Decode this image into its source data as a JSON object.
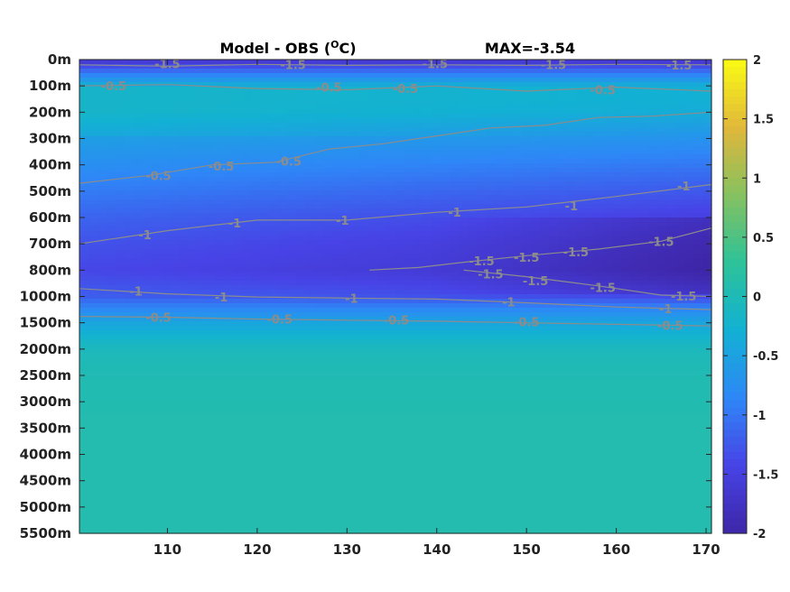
{
  "chart_data": {
    "type": "heatmap",
    "title": "Model - OBS (",
    "title_unit": "O",
    "title_suffix": "C)",
    "max_label": "MAX=-3.54",
    "x_ticks": [
      110,
      120,
      130,
      140,
      150,
      160,
      170
    ],
    "x_tick_labels": [
      "110",
      "120",
      "130",
      "140",
      "150",
      "160",
      "170"
    ],
    "xlim": [
      100.2,
      170.6
    ],
    "y_tick_labels": [
      "0m",
      "100m",
      "200m",
      "300m",
      "400m",
      "500m",
      "600m",
      "700m",
      "800m",
      "1000m",
      "1500m",
      "2000m",
      "2500m",
      "3000m",
      "3500m",
      "4000m",
      "4500m",
      "5000m",
      "5500m"
    ],
    "y_tick_depths": [
      0,
      100,
      200,
      300,
      400,
      500,
      600,
      700,
      800,
      1000,
      1500,
      2000,
      2500,
      3000,
      3500,
      4000,
      4500,
      5000,
      5500
    ],
    "colorbar": {
      "range": [
        -2,
        2
      ],
      "ticks": [
        2,
        1.5,
        1,
        0.5,
        0,
        -0.5,
        -1,
        -1.5,
        -2
      ],
      "tick_labels": [
        "2",
        "1.5",
        "1",
        "0.5",
        "0",
        "-0.5",
        "-1",
        "-1.5",
        "-2"
      ],
      "colormap": [
        "#3e26a8",
        "#4743e6",
        "#2e87f7",
        "#12b1d3",
        "#2dc299",
        "#86c15f",
        "#e1b83a",
        "#f9fb14"
      ]
    },
    "base_profile": [
      {
        "depth": 0,
        "value": -1.7
      },
      {
        "depth": 100,
        "value": -0.3
      },
      {
        "depth": 200,
        "value": -0.3
      },
      {
        "depth": 300,
        "value": -0.55
      },
      {
        "depth": 400,
        "value": -0.75
      },
      {
        "depth": 500,
        "value": -0.95
      },
      {
        "depth": 600,
        "value": -1.15
      },
      {
        "depth": 700,
        "value": -1.3
      },
      {
        "depth": 800,
        "value": -1.4
      },
      {
        "depth": 1000,
        "value": -1.2
      },
      {
        "depth": 1500,
        "value": -0.45
      },
      {
        "depth": 2000,
        "value": -0.05
      },
      {
        "depth": 2500,
        "value": 0.03
      },
      {
        "depth": 3500,
        "value": 0.08
      },
      {
        "depth": 5500,
        "value": 0.08
      }
    ],
    "contours": [
      {
        "level": "-1.5",
        "points": [
          [
            100.2,
            20
          ],
          [
            110,
            25
          ],
          [
            120,
            18
          ],
          [
            130,
            22
          ],
          [
            140,
            20
          ],
          [
            150,
            22
          ],
          [
            160,
            18
          ],
          [
            170.6,
            20
          ]
        ]
      },
      {
        "level": "-0.5",
        "points": [
          [
            100.2,
            100
          ],
          [
            110,
            95
          ],
          [
            120,
            110
          ],
          [
            130,
            115
          ],
          [
            140,
            100
          ],
          [
            150,
            120
          ],
          [
            160,
            105
          ],
          [
            170.6,
            120
          ]
        ]
      },
      {
        "level": "-0.5",
        "points": [
          [
            100.2,
            470
          ],
          [
            108,
            440
          ],
          [
            115,
            400
          ],
          [
            122,
            390
          ],
          [
            128,
            340
          ],
          [
            134,
            320
          ],
          [
            140,
            290
          ],
          [
            146,
            260
          ],
          [
            152,
            250
          ],
          [
            158,
            220
          ],
          [
            164,
            215
          ],
          [
            170.6,
            200
          ]
        ]
      },
      {
        "level": "-1",
        "points": [
          [
            100.2,
            700
          ],
          [
            110,
            650
          ],
          [
            120,
            610
          ],
          [
            130,
            610
          ],
          [
            140,
            580
          ],
          [
            150,
            560
          ],
          [
            160,
            520
          ],
          [
            170.6,
            475
          ]
        ]
      },
      {
        "level": "-1.5",
        "points": [
          [
            132.5,
            800
          ],
          [
            138,
            790
          ],
          [
            143,
            770
          ],
          [
            150,
            745
          ],
          [
            158,
            720
          ],
          [
            165,
            690
          ],
          [
            170.6,
            640
          ]
        ]
      },
      {
        "level": "-1.5",
        "points": [
          [
            143,
            800
          ],
          [
            150,
            850
          ],
          [
            158,
            920
          ],
          [
            165,
            990
          ],
          [
            170.6,
            1000
          ]
        ]
      },
      {
        "level": "-1",
        "points": [
          [
            100.2,
            940
          ],
          [
            110,
            980
          ],
          [
            120,
            1010
          ],
          [
            130,
            1030
          ],
          [
            140,
            1050
          ],
          [
            150,
            1120
          ],
          [
            160,
            1200
          ],
          [
            170.6,
            1250
          ]
        ]
      },
      {
        "level": "-0.5",
        "points": [
          [
            100.2,
            1380
          ],
          [
            110,
            1395
          ],
          [
            120,
            1430
          ],
          [
            130,
            1450
          ],
          [
            140,
            1470
          ],
          [
            150,
            1500
          ],
          [
            160,
            1530
          ],
          [
            170.6,
            1560
          ]
        ]
      }
    ],
    "contour_labels": [
      {
        "text": "-1.5",
        "x": 110,
        "y": 15
      },
      {
        "text": "-1.5",
        "x": 124,
        "y": 18
      },
      {
        "text": "-1.5",
        "x": 139.8,
        "y": 15
      },
      {
        "text": "-1.5",
        "x": 153,
        "y": 18
      },
      {
        "text": "-1.5",
        "x": 167,
        "y": 20
      },
      {
        "text": "-0.5",
        "x": 104,
        "y": 100
      },
      {
        "text": "-0.5",
        "x": 128,
        "y": 105
      },
      {
        "text": "-0.5",
        "x": 136.5,
        "y": 110
      },
      {
        "text": "-0.5",
        "x": 158.5,
        "y": 115
      },
      {
        "text": "-0.5",
        "x": 109,
        "y": 440
      },
      {
        "text": "-0.5",
        "x": 116,
        "y": 405
      },
      {
        "text": "-0.5",
        "x": 123.5,
        "y": 385
      },
      {
        "text": "-1",
        "x": 107.5,
        "y": 665
      },
      {
        "text": "-1",
        "x": 117.5,
        "y": 620
      },
      {
        "text": "-1",
        "x": 129.5,
        "y": 610
      },
      {
        "text": "-1",
        "x": 142,
        "y": 580
      },
      {
        "text": "-1",
        "x": 155,
        "y": 555
      },
      {
        "text": "-1",
        "x": 167.5,
        "y": 480
      },
      {
        "text": "-1.5",
        "x": 145,
        "y": 765
      },
      {
        "text": "-1.5",
        "x": 150,
        "y": 750
      },
      {
        "text": "-1.5",
        "x": 155.5,
        "y": 730
      },
      {
        "text": "-1.5",
        "x": 165,
        "y": 690
      },
      {
        "text": "-1.5",
        "x": 146,
        "y": 830
      },
      {
        "text": "-1.5",
        "x": 151,
        "y": 880
      },
      {
        "text": "-1.5",
        "x": 158.5,
        "y": 930
      },
      {
        "text": "-1.5",
        "x": 167.5,
        "y": 995
      },
      {
        "text": "-1",
        "x": 106.5,
        "y": 960
      },
      {
        "text": "-1",
        "x": 116,
        "y": 1005
      },
      {
        "text": "-1",
        "x": 130.5,
        "y": 1035
      },
      {
        "text": "-1",
        "x": 148,
        "y": 1100
      },
      {
        "text": "-1",
        "x": 165.5,
        "y": 1230
      },
      {
        "text": "-0.5",
        "x": 109,
        "y": 1395
      },
      {
        "text": "-0.5",
        "x": 122.5,
        "y": 1425
      },
      {
        "text": "-0.5",
        "x": 135.5,
        "y": 1445
      },
      {
        "text": "-0.5",
        "x": 150,
        "y": 1480
      },
      {
        "text": "-0.5",
        "x": 166,
        "y": 1545
      }
    ]
  }
}
